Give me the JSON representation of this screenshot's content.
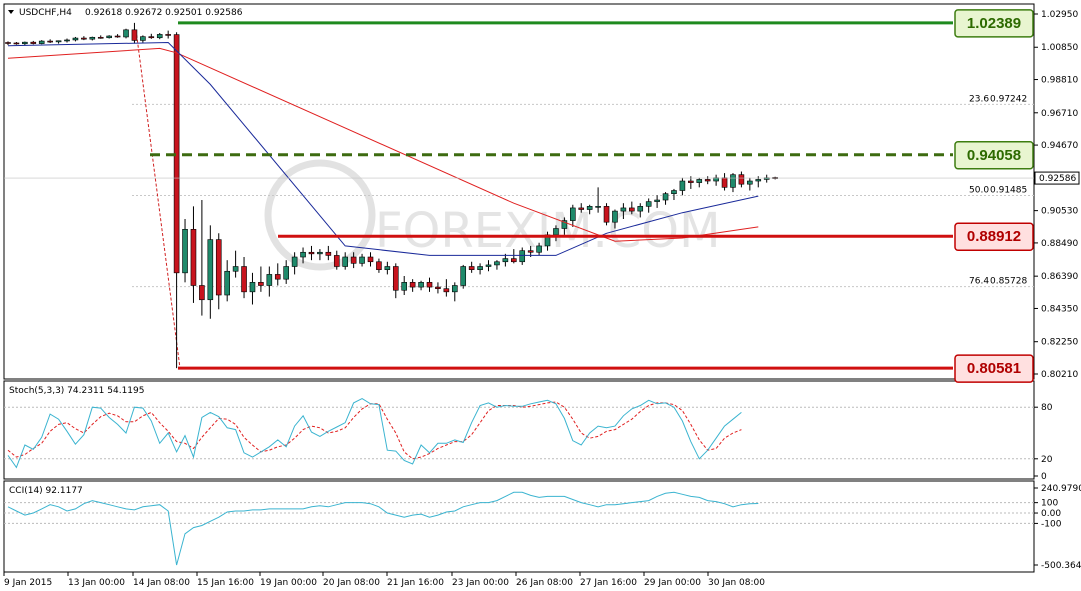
{
  "chart_data": {
    "type": "candlestick",
    "symbol_header": "USDCHF,H4",
    "ohlc_header": "0.92618 0.92672 0.92501 0.92586",
    "price_axis": {
      "range": [
        0.8021,
        1.0295
      ],
      "ticks": [
        "1.02950",
        "1.00850",
        "0.98810",
        "0.96710",
        "0.94670",
        "0.92586",
        "0.90530",
        "0.88490",
        "0.86390",
        "0.84350",
        "0.82250",
        "0.80210"
      ],
      "current_price": "0.92586"
    },
    "time_axis": {
      "labels": [
        "9 Jan 2015",
        "13 Jan 00:00",
        "14 Jan 08:00",
        "15 Jan 16:00",
        "19 Jan 00:00",
        "20 Jan 08:00",
        "21 Jan 16:00",
        "23 Jan 00:00",
        "26 Jan 08:00",
        "27 Jan 16:00",
        "29 Jan 00:00",
        "30 Jan 08:00"
      ]
    },
    "levels": [
      {
        "label": "1.02389",
        "value": 1.02389,
        "style": "solid",
        "color": "#1e8a1e"
      },
      {
        "label": "0.94058",
        "value": 0.94058,
        "style": "dashed",
        "color": "#3d6b10"
      },
      {
        "label": "0.88912",
        "value": 0.88912,
        "style": "solid",
        "color": "#d01010"
      },
      {
        "label": "0.80581",
        "value": 0.80581,
        "style": "solid",
        "color": "#d01010"
      }
    ],
    "fibonacci": [
      {
        "label": "23.6",
        "price_label": "0.97242",
        "value": 0.97242
      },
      {
        "label": "50.0",
        "price_label": "0.91485",
        "value": 0.91485
      },
      {
        "label": "76.4",
        "price_label": "0.85728",
        "value": 0.85728
      }
    ],
    "candles": [
      [
        1.0115,
        1.0122,
        1.0098,
        1.0112
      ],
      [
        1.0112,
        1.0118,
        1.0101,
        1.0107
      ],
      [
        1.0107,
        1.0121,
        1.0096,
        1.0117
      ],
      [
        1.0117,
        1.0125,
        1.0103,
        1.0108
      ],
      [
        1.0108,
        1.013,
        1.0104,
        1.0124
      ],
      [
        1.0124,
        1.0135,
        1.0112,
        1.0119
      ],
      [
        1.0119,
        1.0128,
        1.0108,
        1.0126
      ],
      [
        1.0126,
        1.014,
        1.0115,
        1.0131
      ],
      [
        1.0131,
        1.015,
        1.0122,
        1.0143
      ],
      [
        1.0143,
        1.0155,
        1.013,
        1.0136
      ],
      [
        1.0136,
        1.0152,
        1.0128,
        1.0148
      ],
      [
        1.0148,
        1.016,
        1.0139,
        1.0145
      ],
      [
        1.0145,
        1.0161,
        1.014,
        1.0156
      ],
      [
        1.0156,
        1.0168,
        1.0145,
        1.015
      ],
      [
        1.015,
        1.0202,
        1.0141,
        1.0195
      ],
      [
        1.0195,
        1.0239,
        1.0108,
        1.0128
      ],
      [
        1.0128,
        1.016,
        1.0115,
        1.0152
      ],
      [
        1.0152,
        1.017,
        1.0138,
        1.0145
      ],
      [
        1.0145,
        1.0175,
        1.0136,
        1.0166
      ],
      [
        1.0166,
        1.019,
        1.014,
        1.0165
      ],
      [
        1.0165,
        1.018,
        0.8058,
        0.866
      ],
      [
        0.866,
        0.9,
        0.86,
        0.8935
      ],
      [
        0.8935,
        0.908,
        0.847,
        0.858
      ],
      [
        0.858,
        0.912,
        0.839,
        0.849
      ],
      [
        0.849,
        0.896,
        0.837,
        0.887
      ],
      [
        0.887,
        0.891,
        0.843,
        0.852
      ],
      [
        0.852,
        0.874,
        0.848,
        0.867
      ],
      [
        0.867,
        0.88,
        0.863,
        0.87
      ],
      [
        0.87,
        0.876,
        0.85,
        0.854
      ],
      [
        0.854,
        0.866,
        0.846,
        0.86
      ],
      [
        0.86,
        0.87,
        0.854,
        0.858
      ],
      [
        0.858,
        0.87,
        0.851,
        0.865
      ],
      [
        0.865,
        0.872,
        0.858,
        0.862
      ],
      [
        0.862,
        0.874,
        0.859,
        0.87
      ],
      [
        0.87,
        0.879,
        0.865,
        0.876
      ],
      [
        0.876,
        0.882,
        0.872,
        0.879
      ],
      [
        0.879,
        0.883,
        0.874,
        0.878
      ],
      [
        0.878,
        0.881,
        0.874,
        0.879
      ],
      [
        0.879,
        0.883,
        0.874,
        0.877
      ],
      [
        0.877,
        0.88,
        0.868,
        0.87
      ],
      [
        0.87,
        0.879,
        0.868,
        0.876
      ],
      [
        0.876,
        0.879,
        0.869,
        0.872
      ],
      [
        0.872,
        0.878,
        0.87,
        0.876
      ],
      [
        0.876,
        0.879,
        0.87,
        0.873
      ],
      [
        0.873,
        0.875,
        0.866,
        0.868
      ],
      [
        0.868,
        0.873,
        0.865,
        0.87
      ],
      [
        0.87,
        0.872,
        0.85,
        0.855
      ],
      [
        0.855,
        0.864,
        0.852,
        0.86
      ],
      [
        0.86,
        0.862,
        0.854,
        0.857
      ],
      [
        0.857,
        0.861,
        0.855,
        0.86
      ],
      [
        0.86,
        0.863,
        0.854,
        0.857
      ],
      [
        0.857,
        0.86,
        0.853,
        0.856
      ],
      [
        0.856,
        0.862,
        0.851,
        0.854
      ],
      [
        0.854,
        0.86,
        0.848,
        0.858
      ],
      [
        0.858,
        0.871,
        0.856,
        0.87
      ],
      [
        0.87,
        0.873,
        0.866,
        0.868
      ],
      [
        0.868,
        0.872,
        0.865,
        0.87
      ],
      [
        0.87,
        0.874,
        0.867,
        0.871
      ],
      [
        0.871,
        0.874,
        0.868,
        0.873
      ],
      [
        0.873,
        0.878,
        0.87,
        0.875
      ],
      [
        0.875,
        0.881,
        0.872,
        0.873
      ],
      [
        0.873,
        0.882,
        0.871,
        0.88
      ],
      [
        0.88,
        0.883,
        0.876,
        0.879
      ],
      [
        0.879,
        0.885,
        0.877,
        0.883
      ],
      [
        0.883,
        0.892,
        0.88,
        0.89
      ],
      [
        0.89,
        0.896,
        0.886,
        0.894
      ],
      [
        0.894,
        0.901,
        0.89,
        0.899
      ],
      [
        0.899,
        0.909,
        0.895,
        0.907
      ],
      [
        0.907,
        0.91,
        0.904,
        0.906
      ],
      [
        0.906,
        0.909,
        0.903,
        0.908
      ],
      [
        0.908,
        0.92,
        0.904,
        0.908
      ],
      [
        0.908,
        0.91,
        0.896,
        0.898
      ],
      [
        0.898,
        0.906,
        0.894,
        0.905
      ],
      [
        0.905,
        0.91,
        0.9,
        0.907
      ],
      [
        0.907,
        0.911,
        0.903,
        0.905
      ],
      [
        0.905,
        0.91,
        0.901,
        0.908
      ],
      [
        0.908,
        0.913,
        0.904,
        0.911
      ],
      [
        0.911,
        0.915,
        0.907,
        0.912
      ],
      [
        0.912,
        0.917,
        0.909,
        0.916
      ],
      [
        0.916,
        0.919,
        0.912,
        0.918
      ],
      [
        0.918,
        0.926,
        0.915,
        0.924
      ],
      [
        0.924,
        0.927,
        0.919,
        0.923
      ],
      [
        0.923,
        0.926,
        0.92,
        0.925
      ],
      [
        0.925,
        0.927,
        0.922,
        0.924
      ],
      [
        0.924,
        0.928,
        0.921,
        0.926
      ],
      [
        0.926,
        0.929,
        0.918,
        0.92
      ],
      [
        0.92,
        0.929,
        0.917,
        0.928
      ],
      [
        0.928,
        0.93,
        0.92,
        0.922
      ],
      [
        0.922,
        0.926,
        0.918,
        0.924
      ],
      [
        0.924,
        0.927,
        0.92,
        0.925
      ],
      [
        0.925,
        0.928,
        0.923,
        0.926
      ],
      [
        0.9262,
        0.9267,
        0.925,
        0.9259
      ]
    ],
    "ma_fast_points": [
      [
        0,
        1.0095
      ],
      [
        19,
        1.0115
      ],
      [
        24,
        0.985
      ],
      [
        40,
        0.883
      ],
      [
        50,
        0.877
      ],
      [
        65,
        0.877
      ],
      [
        71,
        0.891
      ],
      [
        80,
        0.904
      ],
      [
        89,
        0.9145
      ]
    ],
    "ma_slow_points": [
      [
        0,
        1.0015
      ],
      [
        18,
        1.0078
      ],
      [
        20,
        1.005
      ],
      [
        60,
        0.91
      ],
      [
        72,
        0.886
      ],
      [
        80,
        0.888
      ],
      [
        89,
        0.895
      ]
    ],
    "stochastic": {
      "label": "Stoch(5,3,3) 74.2311 54.1195",
      "k_value": 74.2311,
      "d_value": 54.1195,
      "levels": [
        "80",
        "20",
        "0"
      ],
      "k": [
        24,
        10,
        36,
        31,
        45,
        72,
        66,
        52,
        37,
        48,
        80,
        79,
        68,
        60,
        50,
        80,
        79,
        64,
        38,
        50,
        28,
        47,
        22,
        68,
        74,
        69,
        56,
        54,
        27,
        22,
        28,
        34,
        42,
        34,
        58,
        70,
        51,
        46,
        52,
        57,
        62,
        85,
        90,
        84,
        83,
        30,
        29,
        18,
        14,
        36,
        27,
        38,
        38,
        42,
        39,
        62,
        82,
        85,
        80,
        82,
        81,
        81,
        84,
        86,
        88,
        84,
        67,
        41,
        36,
        50,
        58,
        56,
        58,
        70,
        78,
        82,
        88,
        84,
        85,
        80,
        64,
        40,
        20,
        30,
        44,
        58,
        66,
        74
      ],
      "d": [
        30,
        22,
        25,
        32,
        38,
        52,
        60,
        62,
        55,
        50,
        60,
        69,
        73,
        70,
        63,
        63,
        70,
        74,
        62,
        52,
        40,
        38,
        32,
        45,
        56,
        67,
        66,
        60,
        45,
        36,
        28,
        30,
        34,
        36,
        44,
        54,
        58,
        56,
        50,
        52,
        56,
        68,
        78,
        84,
        84,
        66,
        50,
        28,
        20,
        22,
        26,
        32,
        36,
        40,
        40,
        48,
        62,
        76,
        82,
        82,
        82,
        80,
        81,
        83,
        85,
        86,
        80,
        66,
        50,
        44,
        46,
        52,
        54,
        60,
        66,
        75,
        82,
        85,
        85,
        83,
        76,
        60,
        42,
        30,
        32,
        44,
        50,
        54
      ]
    },
    "cci": {
      "label": "CCI(14) 92.1177",
      "value": 92.1177,
      "levels": [
        "240.9790",
        "100",
        "0.00",
        "-100",
        "-500.3641"
      ],
      "values": [
        60,
        20,
        -20,
        0,
        40,
        80,
        60,
        20,
        40,
        90,
        120,
        100,
        80,
        60,
        40,
        30,
        60,
        70,
        80,
        20,
        -500,
        -200,
        -140,
        -120,
        -80,
        -40,
        10,
        20,
        20,
        30,
        30,
        40,
        40,
        40,
        40,
        40,
        60,
        70,
        60,
        80,
        100,
        100,
        100,
        90,
        60,
        0,
        -20,
        -40,
        -20,
        -10,
        -40,
        -20,
        10,
        20,
        60,
        80,
        100,
        100,
        120,
        160,
        200,
        200,
        170,
        150,
        160,
        160,
        160,
        130,
        100,
        80,
        60,
        80,
        80,
        90,
        100,
        110,
        120,
        160,
        190,
        200,
        180,
        160,
        150,
        120,
        110,
        90,
        60,
        80,
        90,
        92
      ]
    },
    "watermark": "FOREXIM.COM"
  }
}
